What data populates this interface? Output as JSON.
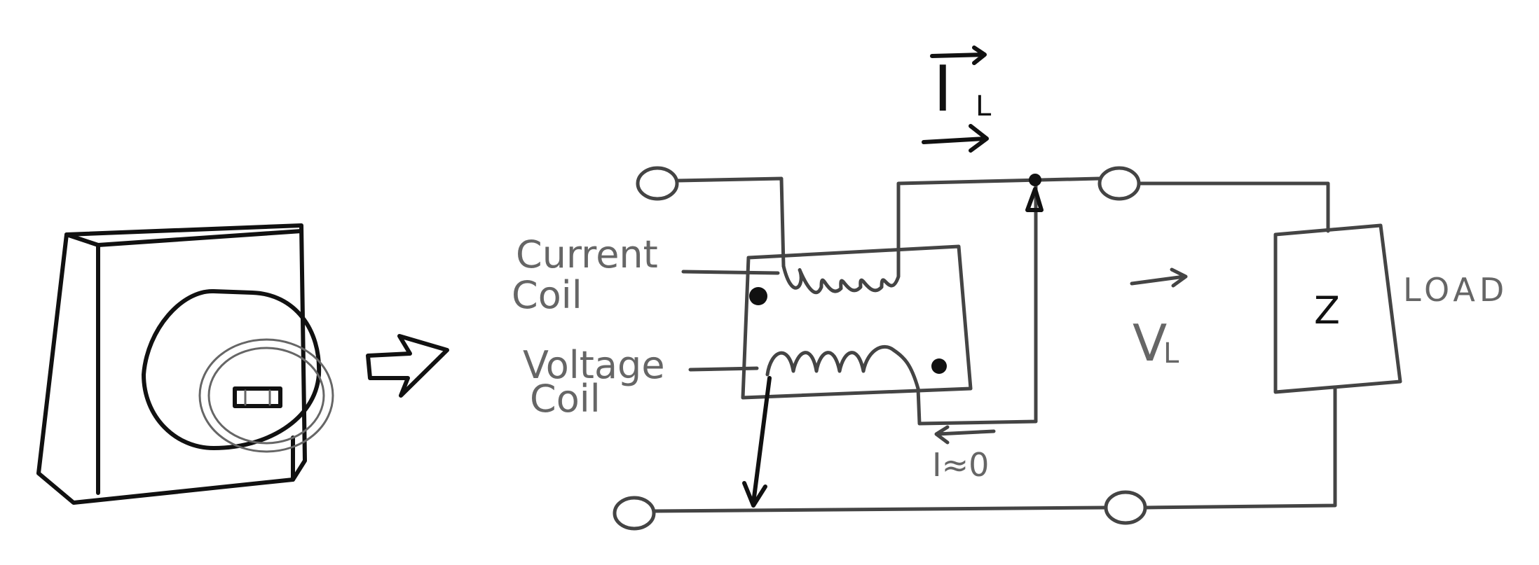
{
  "labels": {
    "current_coil": [
      "Current",
      "Coil"
    ],
    "voltage_coil": [
      "Voltage",
      "Coil"
    ],
    "load": "LOAD",
    "impedance": "Z",
    "load_current": "I",
    "load_current_sub": "L",
    "load_voltage": "V",
    "load_voltage_sub": "L",
    "leak_current": "I≈0"
  },
  "colors": {
    "ink": "#444444",
    "ink_dark": "#111111",
    "paper": "#ffffff"
  },
  "icons": [
    "power-meter-sketch",
    "hollow-right-arrow-icon"
  ]
}
